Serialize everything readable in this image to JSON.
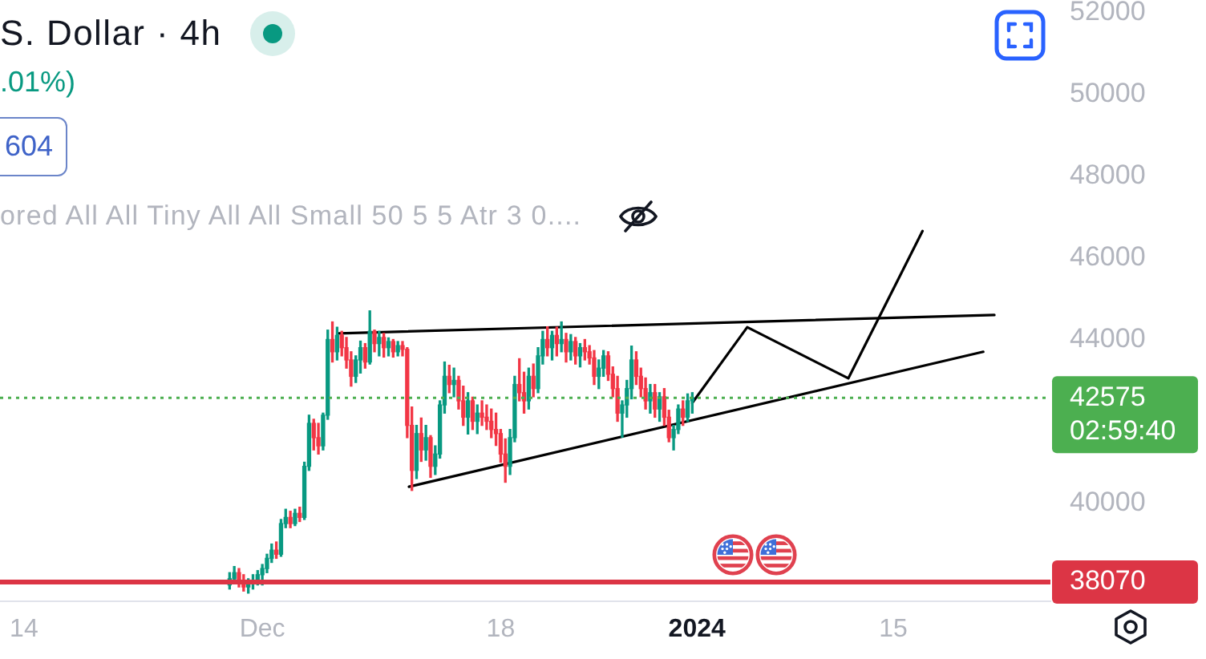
{
  "chart_data": {
    "type": "candlestick",
    "title": "S. Dollar · 4h",
    "subtitle": ".01%)",
    "annotations": [
      "604",
      "ored All All Tiny All All Small 50 5 5 Atr 3 0....",
      "02:59:40"
    ],
    "xlim": [
      "2023-11-12T07:00",
      "2024-01-26T05:00"
    ],
    "xticks": [
      {
        "value": "2023-11-14",
        "label": "14"
      },
      {
        "value": "2023-12-01",
        "label": "Dec"
      },
      {
        "value": "2023-12-18",
        "label": "18"
      },
      {
        "value": "2024-01-01",
        "label": "2024"
      },
      {
        "value": "2024-01-15",
        "label": "15"
      }
    ],
    "ylim": [
      37600,
      52300
    ],
    "yticks": [
      40000,
      44000,
      46000,
      48000,
      50000,
      52000
    ],
    "ref_lines": [
      {
        "axis": "y",
        "value": 38070,
        "label": "38070",
        "color": "#dc3545",
        "line_style": "solid"
      },
      {
        "axis": "y",
        "value": 42575,
        "label": "42575",
        "color": "#4caf50",
        "line_style": "dotted"
      }
    ],
    "series": [
      {
        "x": [
          "2023-11-28T16:00",
          "2023-11-29T00:00",
          "2023-11-29T08:00",
          "2023-11-29T16:00",
          "2023-11-30T00:00",
          "2023-11-30T08:00",
          "2023-11-30T16:00",
          "2023-12-01T00:00",
          "2023-12-01T08:00",
          "2023-12-01T16:00",
          "2023-12-02T00:00",
          "2023-12-02T08:00",
          "2023-12-02T16:00",
          "2023-12-03T00:00",
          "2023-12-03T08:00",
          "2023-12-03T16:00",
          "2023-12-04T00:00",
          "2023-12-04T08:00",
          "2023-12-04T16:00",
          "2023-12-05T00:00",
          "2023-12-05T08:00",
          "2023-12-05T16:00",
          "2023-12-06T00:00",
          "2023-12-06T08:00",
          "2023-12-06T16:00",
          "2023-12-07T00:00",
          "2023-12-07T08:00",
          "2023-12-07T16:00",
          "2023-12-08T00:00",
          "2023-12-08T08:00",
          "2023-12-08T16:00",
          "2023-12-09T00:00",
          "2023-12-09T08:00",
          "2023-12-09T16:00",
          "2023-12-10T00:00",
          "2023-12-10T08:00",
          "2023-12-10T16:00",
          "2023-12-11T00:00",
          "2023-12-11T08:00",
          "2023-12-11T16:00",
          "2023-12-12T00:00",
          "2023-12-12T08:00",
          "2023-12-12T16:00",
          "2023-12-13T00:00",
          "2023-12-13T08:00",
          "2023-12-13T16:00",
          "2023-12-14T00:00",
          "2023-12-14T08:00",
          "2023-12-14T16:00",
          "2023-12-15T00:00",
          "2023-12-15T08:00",
          "2023-12-15T16:00",
          "2023-12-16T00:00",
          "2023-12-16T08:00",
          "2023-12-16T16:00",
          "2023-12-17T00:00",
          "2023-12-17T08:00",
          "2023-12-17T16:00",
          "2023-12-18T00:00",
          "2023-12-18T08:00",
          "2023-12-18T16:00",
          "2023-12-19T00:00",
          "2023-12-19T08:00",
          "2023-12-19T16:00",
          "2023-12-20T00:00",
          "2023-12-20T08:00",
          "2023-12-20T16:00",
          "2023-12-21T00:00",
          "2023-12-21T08:00",
          "2023-12-21T16:00",
          "2023-12-22T00:00",
          "2023-12-22T08:00",
          "2023-12-22T16:00",
          "2023-12-23T00:00",
          "2023-12-23T08:00",
          "2023-12-23T16:00",
          "2023-12-24T00:00",
          "2023-12-24T08:00",
          "2023-12-24T16:00",
          "2023-12-25T00:00",
          "2023-12-25T08:00",
          "2023-12-25T16:00",
          "2023-12-26T00:00",
          "2023-12-26T08:00",
          "2023-12-26T16:00",
          "2023-12-27T00:00",
          "2023-12-27T08:00",
          "2023-12-27T16:00",
          "2023-12-28T00:00",
          "2023-12-28T08:00",
          "2023-12-28T16:00",
          "2023-12-29T00:00",
          "2023-12-29T08:00",
          "2023-12-29T16:00",
          "2023-12-30T00:00",
          "2023-12-30T08:00",
          "2023-12-30T16:00",
          "2023-12-31T00:00",
          "2023-12-31T08:00",
          "2023-12-31T16:00"
        ],
        "ohlc": [
          [
            38000,
            38300,
            37900,
            38150
          ],
          [
            38150,
            38450,
            38050,
            38300
          ],
          [
            38300,
            38400,
            37950,
            38050
          ],
          [
            38050,
            38250,
            37850,
            37950
          ],
          [
            37950,
            38150,
            37800,
            38050
          ],
          [
            38050,
            38250,
            37900,
            38100
          ],
          [
            38100,
            38350,
            38000,
            38250
          ],
          [
            38250,
            38500,
            38000,
            38400
          ],
          [
            38400,
            38750,
            38300,
            38650
          ],
          [
            38650,
            39000,
            38550,
            38850
          ],
          [
            38850,
            39050,
            38650,
            38750
          ],
          [
            38750,
            39600,
            38700,
            39500
          ],
          [
            39500,
            39850,
            39400,
            39650
          ],
          [
            39650,
            39800,
            39400,
            39500
          ],
          [
            39500,
            39850,
            39450,
            39750
          ],
          [
            39750,
            39900,
            39550,
            39650
          ],
          [
            39650,
            41000,
            39600,
            40900
          ],
          [
            40900,
            42150,
            40800,
            41950
          ],
          [
            41950,
            42050,
            41300,
            41600
          ],
          [
            41600,
            41950,
            41200,
            41400
          ],
          [
            41400,
            42200,
            41300,
            42150
          ],
          [
            42150,
            44230,
            42050,
            44000
          ],
          [
            44000,
            44430,
            43450,
            43700
          ],
          [
            43700,
            44300,
            43500,
            44100
          ],
          [
            44100,
            44200,
            43600,
            43800
          ],
          [
            43800,
            44050,
            43300,
            43500
          ],
          [
            43500,
            43700,
            42860,
            43100
          ],
          [
            43100,
            43600,
            42950,
            43500
          ],
          [
            43500,
            43960,
            43180,
            43800
          ],
          [
            43800,
            43900,
            43300,
            43450
          ],
          [
            43450,
            44700,
            43400,
            44200
          ],
          [
            44200,
            44230,
            43700,
            43900
          ],
          [
            43900,
            44200,
            43600,
            44050
          ],
          [
            44050,
            44150,
            43570,
            43800
          ],
          [
            43800,
            44040,
            43600,
            43950
          ],
          [
            43950,
            44000,
            43570,
            43700
          ],
          [
            43700,
            43950,
            43600,
            43850
          ],
          [
            43850,
            43950,
            43600,
            43760
          ],
          [
            43760,
            43800,
            41600,
            41900
          ],
          [
            41900,
            42350,
            40310,
            40800
          ],
          [
            40800,
            41900,
            40600,
            41700
          ],
          [
            41700,
            42080,
            41020,
            41300
          ],
          [
            41300,
            41900,
            41050,
            41600
          ],
          [
            41600,
            41650,
            40630,
            40900
          ],
          [
            40900,
            41400,
            40700,
            41200
          ],
          [
            41200,
            42500,
            41100,
            42400
          ],
          [
            42400,
            43450,
            42200,
            43100
          ],
          [
            43100,
            43370,
            42700,
            42900
          ],
          [
            42900,
            43300,
            42600,
            43000
          ],
          [
            43000,
            43100,
            42300,
            42500
          ],
          [
            42500,
            42860,
            41900,
            42100
          ],
          [
            42100,
            42700,
            41690,
            42500
          ],
          [
            42500,
            42590,
            41800,
            42000
          ],
          [
            42000,
            42400,
            41700,
            42200
          ],
          [
            42200,
            42500,
            41900,
            42100
          ],
          [
            42100,
            42400,
            41800,
            42000
          ],
          [
            42000,
            42300,
            41600,
            41800
          ],
          [
            41800,
            42200,
            41410,
            41700
          ],
          [
            41700,
            41800,
            41000,
            41200
          ],
          [
            41200,
            41570,
            40510,
            40900
          ],
          [
            40900,
            41800,
            40700,
            41600
          ],
          [
            41600,
            43100,
            41500,
            42900
          ],
          [
            42900,
            43530,
            42500,
            42700
          ],
          [
            42700,
            43200,
            42200,
            42500
          ],
          [
            42500,
            43300,
            42300,
            43100
          ],
          [
            43100,
            43400,
            42600,
            42800
          ],
          [
            42800,
            43800,
            42700,
            43600
          ],
          [
            43600,
            44200,
            43400,
            44000
          ],
          [
            44000,
            44310,
            43600,
            43800
          ],
          [
            43800,
            44200,
            43500,
            44100
          ],
          [
            44100,
            44300,
            43600,
            43900
          ],
          [
            43900,
            44430,
            43700,
            44000
          ],
          [
            44000,
            44150,
            43450,
            43700
          ],
          [
            43700,
            44120,
            43500,
            43950
          ],
          [
            43950,
            44050,
            43400,
            43600
          ],
          [
            43600,
            43900,
            43330,
            43800
          ],
          [
            43800,
            44000,
            43500,
            43700
          ],
          [
            43700,
            43850,
            43400,
            43550
          ],
          [
            43550,
            43730,
            42900,
            43100
          ],
          [
            43100,
            43500,
            42800,
            43300
          ],
          [
            43300,
            43730,
            43100,
            43600
          ],
          [
            43600,
            43700,
            43000,
            43150
          ],
          [
            43150,
            43330,
            42600,
            42800
          ],
          [
            42800,
            43100,
            42000,
            42200
          ],
          [
            42200,
            42500,
            41610,
            42400
          ],
          [
            42400,
            43000,
            42100,
            42800
          ],
          [
            42800,
            43840,
            42550,
            43500
          ],
          [
            43500,
            43700,
            42900,
            43100
          ],
          [
            43100,
            43300,
            42600,
            42800
          ],
          [
            42800,
            43060,
            42300,
            42500
          ],
          [
            42500,
            42900,
            42200,
            42700
          ],
          [
            42700,
            42900,
            42100,
            42300
          ],
          [
            42300,
            42700,
            42000,
            42600
          ],
          [
            42600,
            42800,
            41900,
            42100
          ],
          [
            42100,
            42270,
            41500,
            41600
          ],
          [
            41600,
            41900,
            41300,
            41800
          ],
          [
            41800,
            42400,
            41700,
            42300
          ],
          [
            42300,
            42500,
            41900,
            42100
          ],
          [
            42100,
            42670,
            42000,
            42500
          ],
          [
            42500,
            42700,
            42200,
            42575
          ]
        ],
        "colors": [
          "#089981",
          "#089981",
          "#f23645",
          "#f23645",
          "#089981",
          "#089981",
          "#089981",
          "#089981",
          "#089981",
          "#089981",
          "#f23645",
          "#089981",
          "#089981",
          "#f23645",
          "#089981",
          "#f23645",
          "#089981",
          "#089981",
          "#f23645",
          "#f23645",
          "#089981",
          "#089981",
          "#f23645",
          "#089981",
          "#f23645",
          "#f23645",
          "#f23645",
          "#089981",
          "#089981",
          "#f23645",
          "#089981",
          "#f23645",
          "#089981",
          "#f23645",
          "#089981",
          "#f23645",
          "#089981",
          "#f23645",
          "#f23645",
          "#f23645",
          "#089981",
          "#f23645",
          "#089981",
          "#f23645",
          "#089981",
          "#089981",
          "#089981",
          "#f23645",
          "#089981",
          "#f23645",
          "#f23645",
          "#089981",
          "#f23645",
          "#089981",
          "#f23645",
          "#f23645",
          "#f23645",
          "#f23645",
          "#f23645",
          "#f23645",
          "#089981",
          "#089981",
          "#f23645",
          "#f23645",
          "#089981",
          "#f23645",
          "#089981",
          "#089981",
          "#f23645",
          "#089981",
          "#f23645",
          "#089981",
          "#f23645",
          "#089981",
          "#f23645",
          "#089981",
          "#f23645",
          "#f23645",
          "#f23645",
          "#089981",
          "#089981",
          "#f23645",
          "#f23645",
          "#f23645",
          "#089981",
          "#089981",
          "#089981",
          "#f23645",
          "#f23645",
          "#f23645",
          "#089981",
          "#f23645",
          "#089981",
          "#f23645",
          "#f23645",
          "#089981",
          "#089981",
          "#f23645",
          "#089981",
          "#089981"
        ]
      },
      {
        "type": "line",
        "color": "#000000",
        "x": [
          "2023-12-06T11:00",
          "2024-01-22T05:00"
        ],
        "values": [
          44150,
          44600
        ]
      },
      {
        "type": "line",
        "color": "#000000",
        "x": [
          "2023-12-11T11:00",
          "2024-01-21T10:00"
        ],
        "values": [
          40400,
          43700
        ]
      },
      {
        "type": "line",
        "color": "#000000",
        "x": [
          "2023-12-31T16:00",
          "2024-01-04T14:00",
          "2024-01-11T19:00",
          "2024-01-17T02:00"
        ],
        "values": [
          42450,
          44300,
          43050,
          46650
        ]
      }
    ]
  }
}
